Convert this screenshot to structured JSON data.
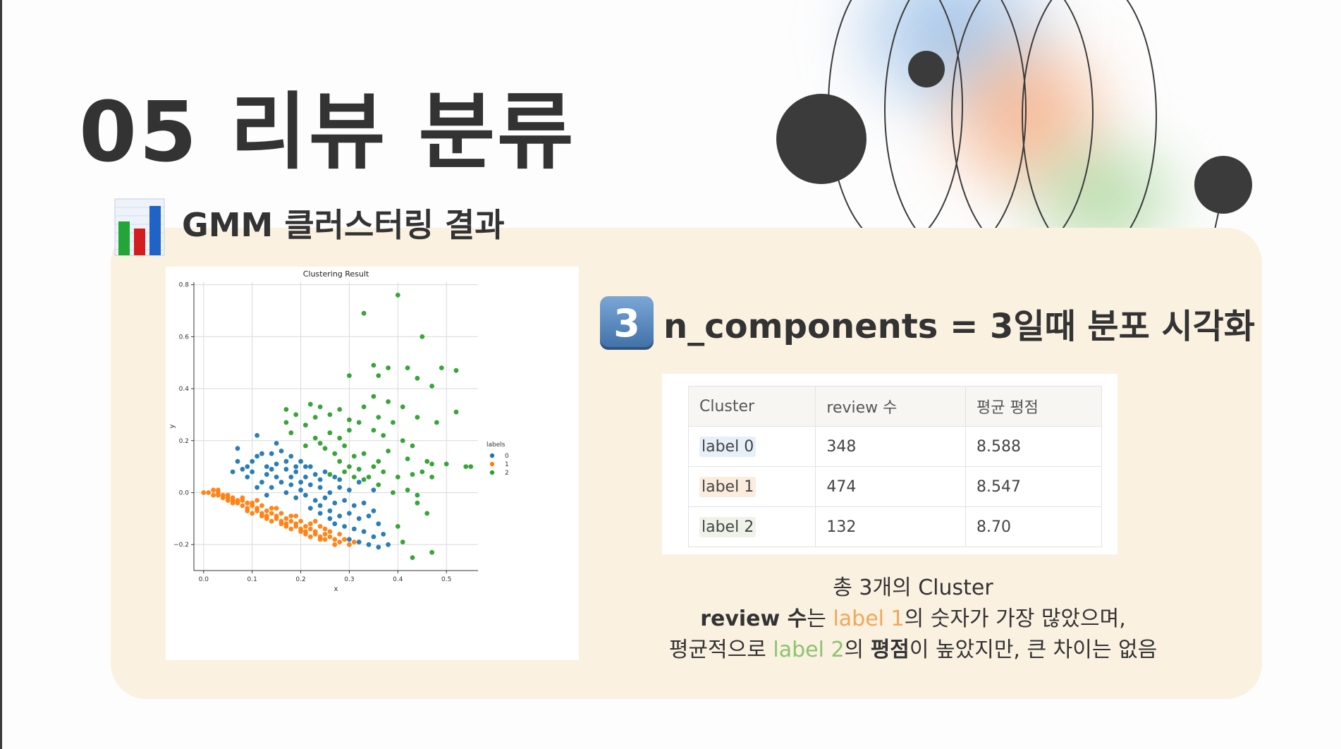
{
  "slide": {
    "title": "05 리뷰 분류",
    "subtitle": "GMM 클러스터링 결과",
    "subtitle_icon": "bar-chart-icon"
  },
  "section": {
    "number": "3",
    "heading": "n_components = 3일때 분포 시각화"
  },
  "table": {
    "headers": [
      "Cluster",
      "review 수",
      "평균 평점"
    ],
    "rows": [
      {
        "label": "label 0",
        "reviews": "348",
        "rating": "8.588"
      },
      {
        "label": "label 1",
        "reviews": "474",
        "rating": "8.547"
      },
      {
        "label": "label 2",
        "reviews": "132",
        "rating": "8.70"
      }
    ]
  },
  "summary": {
    "line1": "총 3개의 Cluster",
    "line2": {
      "bold_a": "review 수",
      "text_a": "는 ",
      "highlight": "label 1",
      "text_b": "의 숫자가 가장 많았으며,"
    },
    "line3": {
      "text_a": "평균적으로 ",
      "highlight": "label 2",
      "text_b": "의 ",
      "bold": "평점",
      "text_c": "이 높았지만, 큰 차이는 없음"
    }
  },
  "colors": {
    "title": "#333333",
    "panel": "#faf1e1",
    "label0": "#1f77b4",
    "label1": "#ff7f0e",
    "label2": "#2ca02c",
    "highlight_orange": "#f2a65a",
    "highlight_green": "#8dc36e"
  },
  "chart_data": {
    "type": "scatter",
    "title": "Clustering Result",
    "xlabel": "x",
    "ylabel": "y",
    "xlim": [
      -0.02,
      0.565
    ],
    "ylim": [
      -0.3,
      0.81
    ],
    "xticks": [
      "0.0",
      "0.1",
      "0.2",
      "0.3",
      "0.4",
      "0.5"
    ],
    "yticks": [
      "−0.2",
      "0.0",
      "0.2",
      "0.4",
      "0.6",
      "0.8"
    ],
    "grid": true,
    "legend": {
      "title": "labels",
      "placement": "right",
      "entries": [
        "0",
        "1",
        "2"
      ]
    },
    "series": [
      {
        "name": "0",
        "color": "#1f77b4",
        "points": [
          [
            0.11,
            0.22
          ],
          [
            0.15,
            0.19
          ],
          [
            0.07,
            0.17
          ],
          [
            0.11,
            0.14
          ],
          [
            0.12,
            0.15
          ],
          [
            0.14,
            0.15
          ],
          [
            0.16,
            0.16
          ],
          [
            0.18,
            0.14
          ],
          [
            0.2,
            0.12
          ],
          [
            0.22,
            0.1
          ],
          [
            0.06,
            0.08
          ],
          [
            0.08,
            0.09
          ],
          [
            0.1,
            0.08
          ],
          [
            0.09,
            0.06
          ],
          [
            0.13,
            0.1
          ],
          [
            0.15,
            0.11
          ],
          [
            0.17,
            0.09
          ],
          [
            0.19,
            0.08
          ],
          [
            0.21,
            0.06
          ],
          [
            0.23,
            0.07
          ],
          [
            0.25,
            0.08
          ],
          [
            0.27,
            0.06
          ],
          [
            0.12,
            0.04
          ],
          [
            0.14,
            0.02
          ],
          [
            0.16,
            0.04
          ],
          [
            0.18,
            0.03
          ],
          [
            0.2,
            0.01
          ],
          [
            0.22,
            0.03
          ],
          [
            0.24,
            0.02
          ],
          [
            0.26,
            0.0
          ],
          [
            0.28,
            0.02
          ],
          [
            0.3,
            0.01
          ],
          [
            0.17,
            0.0
          ],
          [
            0.19,
            -0.02
          ],
          [
            0.21,
            -0.01
          ],
          [
            0.23,
            -0.03
          ],
          [
            0.25,
            -0.02
          ],
          [
            0.27,
            -0.04
          ],
          [
            0.29,
            -0.03
          ],
          [
            0.31,
            -0.05
          ],
          [
            0.22,
            -0.06
          ],
          [
            0.24,
            -0.08
          ],
          [
            0.26,
            -0.07
          ],
          [
            0.28,
            -0.09
          ],
          [
            0.3,
            -0.08
          ],
          [
            0.32,
            -0.1
          ],
          [
            0.34,
            -0.09
          ],
          [
            0.27,
            -0.12
          ],
          [
            0.29,
            -0.13
          ],
          [
            0.31,
            -0.14
          ],
          [
            0.33,
            -0.15
          ],
          [
            0.35,
            -0.17
          ],
          [
            0.37,
            -0.16
          ],
          [
            0.3,
            -0.18
          ],
          [
            0.32,
            -0.19
          ],
          [
            0.34,
            -0.2
          ],
          [
            0.36,
            -0.21
          ],
          [
            0.38,
            -0.2
          ],
          [
            0.13,
            0.07
          ],
          [
            0.15,
            0.06
          ],
          [
            0.18,
            0.06
          ],
          [
            0.2,
            0.04
          ],
          [
            0.24,
            0.05
          ],
          [
            0.09,
            0.1
          ],
          [
            0.1,
            0.12
          ],
          [
            0.17,
            0.12
          ],
          [
            0.19,
            0.1
          ],
          [
            0.21,
            0.1
          ],
          [
            0.11,
            0.02
          ],
          [
            0.13,
            -0.01
          ],
          [
            0.24,
            -0.05
          ],
          [
            0.26,
            -0.1
          ],
          [
            0.33,
            -0.04
          ],
          [
            0.35,
            -0.07
          ],
          [
            0.36,
            -0.12
          ],
          [
            0.35,
            0.01
          ],
          [
            0.32,
            0.04
          ],
          [
            0.07,
            0.12
          ],
          [
            0.14,
            0.09
          ],
          [
            0.28,
            0.05
          ]
        ]
      },
      {
        "name": "1",
        "color": "#ff7f0e",
        "points": [
          [
            0.0,
            0.0
          ],
          [
            0.01,
            0.0
          ],
          [
            0.02,
            -0.01
          ],
          [
            0.03,
            -0.01
          ],
          [
            0.03,
            0.0
          ],
          [
            0.04,
            -0.02
          ],
          [
            0.05,
            -0.02
          ],
          [
            0.05,
            -0.03
          ],
          [
            0.06,
            -0.03
          ],
          [
            0.07,
            -0.04
          ],
          [
            0.07,
            -0.03
          ],
          [
            0.08,
            -0.05
          ],
          [
            0.09,
            -0.04
          ],
          [
            0.09,
            -0.06
          ],
          [
            0.1,
            -0.05
          ],
          [
            0.11,
            -0.07
          ],
          [
            0.11,
            -0.06
          ],
          [
            0.12,
            -0.08
          ],
          [
            0.13,
            -0.07
          ],
          [
            0.13,
            -0.09
          ],
          [
            0.14,
            -0.08
          ],
          [
            0.15,
            -0.1
          ],
          [
            0.15,
            -0.09
          ],
          [
            0.16,
            -0.11
          ],
          [
            0.17,
            -0.1
          ],
          [
            0.17,
            -0.12
          ],
          [
            0.18,
            -0.11
          ],
          [
            0.19,
            -0.13
          ],
          [
            0.19,
            -0.12
          ],
          [
            0.2,
            -0.14
          ],
          [
            0.21,
            -0.13
          ],
          [
            0.21,
            -0.15
          ],
          [
            0.22,
            -0.14
          ],
          [
            0.23,
            -0.16
          ],
          [
            0.23,
            -0.15
          ],
          [
            0.24,
            -0.17
          ],
          [
            0.25,
            -0.16
          ],
          [
            0.25,
            -0.18
          ],
          [
            0.26,
            -0.17
          ],
          [
            0.27,
            -0.18
          ],
          [
            0.28,
            -0.19
          ],
          [
            0.29,
            -0.18
          ],
          [
            0.3,
            -0.2
          ],
          [
            0.31,
            -0.19
          ],
          [
            0.04,
            -0.01
          ],
          [
            0.06,
            -0.02
          ],
          [
            0.08,
            -0.03
          ],
          [
            0.1,
            -0.04
          ],
          [
            0.12,
            -0.05
          ],
          [
            0.14,
            -0.06
          ],
          [
            0.16,
            -0.08
          ],
          [
            0.18,
            -0.09
          ],
          [
            0.2,
            -0.11
          ],
          [
            0.22,
            -0.12
          ],
          [
            0.24,
            -0.13
          ],
          [
            0.26,
            -0.15
          ],
          [
            0.02,
            0.01
          ],
          [
            0.06,
            -0.04
          ],
          [
            0.09,
            -0.07
          ],
          [
            0.13,
            -0.1
          ],
          [
            0.17,
            -0.13
          ],
          [
            0.2,
            -0.15
          ],
          [
            0.24,
            -0.18
          ],
          [
            0.27,
            -0.2
          ],
          [
            0.11,
            -0.03
          ],
          [
            0.15,
            -0.06
          ],
          [
            0.19,
            -0.09
          ],
          [
            0.23,
            -0.11
          ],
          [
            0.03,
            0.01
          ],
          [
            0.08,
            -0.02
          ],
          [
            0.12,
            -0.09
          ],
          [
            0.16,
            -0.12
          ],
          [
            0.22,
            -0.17
          ],
          [
            0.28,
            -0.16
          ],
          [
            0.05,
            -0.01
          ],
          [
            0.1,
            -0.08
          ],
          [
            0.14,
            -0.11
          ],
          [
            0.18,
            -0.14
          ],
          [
            0.21,
            -0.16
          ],
          [
            0.25,
            -0.14
          ]
        ]
      },
      {
        "name": "2",
        "color": "#2ca02c",
        "points": [
          [
            0.4,
            0.76
          ],
          [
            0.33,
            0.69
          ],
          [
            0.45,
            0.6
          ],
          [
            0.35,
            0.49
          ],
          [
            0.38,
            0.48
          ],
          [
            0.42,
            0.48
          ],
          [
            0.3,
            0.45
          ],
          [
            0.36,
            0.45
          ],
          [
            0.44,
            0.44
          ],
          [
            0.49,
            0.48
          ],
          [
            0.52,
            0.47
          ],
          [
            0.47,
            0.41
          ],
          [
            0.35,
            0.37
          ],
          [
            0.38,
            0.35
          ],
          [
            0.33,
            0.33
          ],
          [
            0.41,
            0.33
          ],
          [
            0.44,
            0.29
          ],
          [
            0.48,
            0.27
          ],
          [
            0.52,
            0.31
          ],
          [
            0.17,
            0.32
          ],
          [
            0.19,
            0.3
          ],
          [
            0.22,
            0.34
          ],
          [
            0.24,
            0.33
          ],
          [
            0.26,
            0.3
          ],
          [
            0.28,
            0.32
          ],
          [
            0.3,
            0.28
          ],
          [
            0.32,
            0.27
          ],
          [
            0.17,
            0.27
          ],
          [
            0.21,
            0.26
          ],
          [
            0.23,
            0.29
          ],
          [
            0.36,
            0.29
          ],
          [
            0.39,
            0.27
          ],
          [
            0.26,
            0.23
          ],
          [
            0.28,
            0.21
          ],
          [
            0.3,
            0.24
          ],
          [
            0.35,
            0.24
          ],
          [
            0.37,
            0.22
          ],
          [
            0.41,
            0.2
          ],
          [
            0.43,
            0.18
          ],
          [
            0.18,
            0.23
          ],
          [
            0.21,
            0.18
          ],
          [
            0.23,
            0.21
          ],
          [
            0.25,
            0.17
          ],
          [
            0.27,
            0.15
          ],
          [
            0.29,
            0.18
          ],
          [
            0.31,
            0.14
          ],
          [
            0.33,
            0.15
          ],
          [
            0.38,
            0.16
          ],
          [
            0.42,
            0.13
          ],
          [
            0.46,
            0.12
          ],
          [
            0.47,
            0.11
          ],
          [
            0.5,
            0.11
          ],
          [
            0.54,
            0.1
          ],
          [
            0.28,
            0.12
          ],
          [
            0.3,
            0.1
          ],
          [
            0.32,
            0.09
          ],
          [
            0.35,
            0.1
          ],
          [
            0.37,
            0.08
          ],
          [
            0.4,
            0.06
          ],
          [
            0.43,
            0.07
          ],
          [
            0.45,
            0.08
          ],
          [
            0.47,
            0.06
          ],
          [
            0.31,
            0.06
          ],
          [
            0.33,
            0.05
          ],
          [
            0.36,
            0.03
          ],
          [
            0.39,
            0.0
          ],
          [
            0.42,
            0.01
          ],
          [
            0.44,
            -0.01
          ],
          [
            0.46,
            -0.08
          ],
          [
            0.4,
            -0.13
          ],
          [
            0.41,
            -0.19
          ],
          [
            0.43,
            -0.25
          ],
          [
            0.47,
            -0.23
          ],
          [
            0.44,
            -0.04
          ],
          [
            0.55,
            0.1
          ],
          [
            0.36,
            0.12
          ],
          [
            0.24,
            0.19
          ],
          [
            0.26,
            0.07
          ],
          [
            0.29,
            0.08
          ],
          [
            0.34,
            0.06
          ]
        ]
      }
    ]
  }
}
